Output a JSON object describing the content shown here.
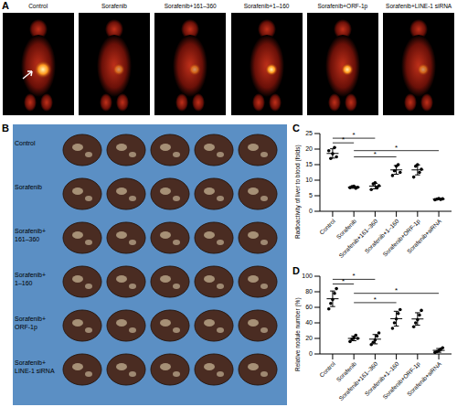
{
  "panel_A": {
    "label": "A",
    "titles": [
      "Control",
      "Sorafenib",
      "Sorafenib+161–360",
      "Sorafenib+1–160",
      "Sorafenib+ORF-1p",
      "Sorafenib+LINE-1 siRNA"
    ]
  },
  "panel_B": {
    "label": "B",
    "rows": [
      "Control",
      "Sorafenib",
      "Sorafenib+\n161–360",
      "Sorafenib+\n1–160",
      "Sorafenib+\nORF-1p",
      "Sorafenib+\nLINE-1 siRNA"
    ]
  },
  "chart_data": [
    {
      "type": "scatter",
      "title": "C",
      "y_label": "Radioactivity of liver to blood (folds)",
      "categories": [
        "Control",
        "Sorafenib",
        "Sorafenib+161–360",
        "Sorafenib+1–160",
        "Sorafenib+ORF-1p",
        "Sorafenib+siRNA"
      ],
      "values": [
        [
          19.5,
          17,
          18.5,
          20.5,
          17.5
        ],
        [
          7.6,
          7.9,
          8.1,
          7.4,
          7.7
        ],
        [
          7,
          8.8,
          9.2,
          7.5,
          8.2
        ],
        [
          11.5,
          13,
          14.5,
          15,
          12.5
        ],
        [
          11,
          14.5,
          15,
          12.5,
          13.5
        ],
        [
          3.7,
          3.9,
          4.1,
          3.8,
          4.0
        ]
      ],
      "means": [
        18.6,
        7.7,
        8.1,
        13.3,
        13.3,
        3.9
      ],
      "sd": [
        1.5,
        0.3,
        0.9,
        1.4,
        1.6,
        0.15
      ],
      "ylim": [
        0,
        25
      ],
      "yticks": [
        0,
        5,
        10,
        15,
        20,
        25
      ],
      "color": "#000000",
      "marker": "circle",
      "significance": [
        {
          "from": "Control",
          "to": "Sorafenib",
          "y": 22,
          "label": "*"
        },
        {
          "from": "Control",
          "to": "Sorafenib+161–360",
          "y": 23.5,
          "label": "*"
        },
        {
          "from": "Sorafenib",
          "to": "Sorafenib+1–160",
          "y": 17.5,
          "label": "*"
        },
        {
          "from": "Sorafenib",
          "to": "Sorafenib+siRNA",
          "y": 19.5,
          "label": "*"
        }
      ]
    },
    {
      "type": "scatter",
      "title": "D",
      "y_label": "Relative nodule number (%)",
      "categories": [
        "Control",
        "Sorafenib",
        "Sorafenib+161–360",
        "Sorafenib+1–160",
        "Sorafenib+ORF-1p",
        "Sorafenib+siRNA"
      ],
      "values": [
        [
          58,
          65,
          70,
          78,
          84
        ],
        [
          16,
          19,
          21,
          24,
          20
        ],
        [
          12,
          15,
          18,
          23,
          27
        ],
        [
          33,
          40,
          45,
          52,
          57
        ],
        [
          35,
          40,
          44,
          50,
          56
        ],
        [
          2,
          3,
          4,
          6,
          8
        ]
      ],
      "means": [
        71,
        20,
        19,
        45.4,
        45,
        4.6
      ],
      "sd": [
        10,
        3,
        6,
        9.5,
        8,
        2.4
      ],
      "ylim": [
        0,
        100
      ],
      "yticks": [
        0,
        20,
        40,
        60,
        80,
        100
      ],
      "color": "#000000",
      "marker": "circle",
      "significance": [
        {
          "from": "Control",
          "to": "Sorafenib",
          "y": 90,
          "label": "*"
        },
        {
          "from": "Control",
          "to": "Sorafenib+161–360",
          "y": 96,
          "label": "*"
        },
        {
          "from": "Sorafenib",
          "to": "Sorafenib+1–160",
          "y": 66,
          "label": "*"
        },
        {
          "from": "Sorafenib",
          "to": "Sorafenib+siRNA",
          "y": 78,
          "label": "*"
        }
      ]
    }
  ]
}
